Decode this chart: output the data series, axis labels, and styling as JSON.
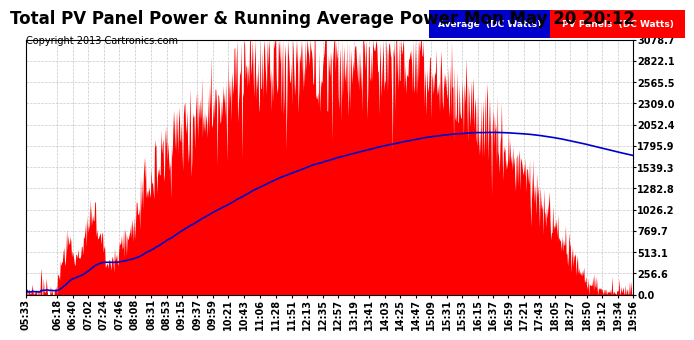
{
  "title": "Total PV Panel Power & Running Average Power Mon May 20 20:12",
  "copyright": "Copyright 2013 Cartronics.com",
  "legend_avg": "Average  (DC Watts)",
  "legend_pv": "PV Panels  (DC Watts)",
  "yticks": [
    0.0,
    256.6,
    513.1,
    769.7,
    1026.2,
    1282.8,
    1539.3,
    1795.9,
    2052.4,
    2309.0,
    2565.5,
    2822.1,
    3078.7
  ],
  "ymax": 3078.7,
  "ymin": 0.0,
  "xtick_labels": [
    "05:33",
    "06:18",
    "06:40",
    "07:02",
    "07:24",
    "07:46",
    "08:08",
    "08:31",
    "08:53",
    "09:15",
    "09:37",
    "09:59",
    "10:21",
    "10:43",
    "11:06",
    "11:28",
    "11:51",
    "12:13",
    "12:35",
    "12:57",
    "13:19",
    "13:41",
    "14:03",
    "14:25",
    "14:47",
    "15:09",
    "15:31",
    "15:53",
    "16:15",
    "16:37",
    "16:59",
    "17:21",
    "17:43",
    "18:05",
    "18:27",
    "18:50",
    "19:12",
    "19:34",
    "19:56"
  ],
  "pv_color": "#ff0000",
  "avg_color": "#0000cc",
  "bg_color": "#ffffff",
  "plot_bg_color": "#ffffff",
  "grid_color": "#bbbbbb",
  "title_fontsize": 12,
  "copyright_fontsize": 7,
  "tick_fontsize": 7
}
